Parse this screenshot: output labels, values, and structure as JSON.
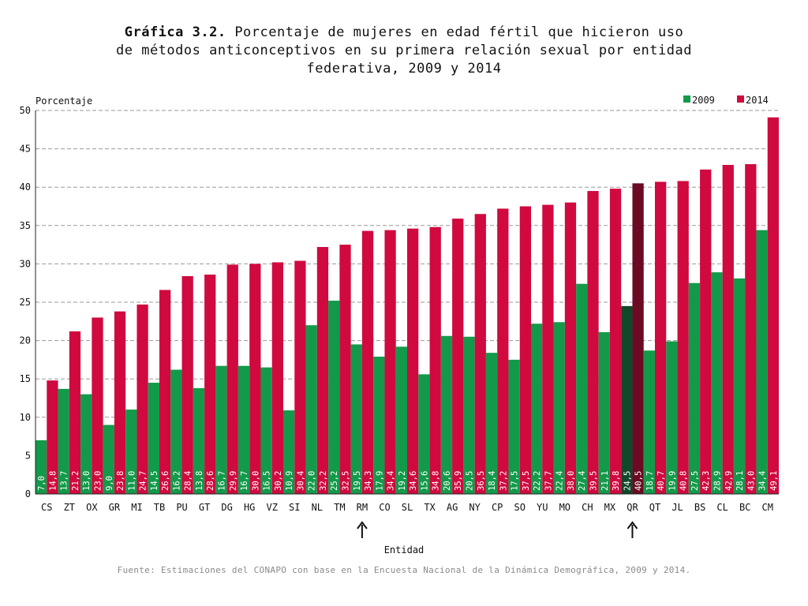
{
  "title": {
    "bold": "Gráfica 3.2.",
    "line1": "Porcentaje de mujeres en edad fértil que hicieron uso",
    "line2": "de métodos anticonceptivos en su primera relación sexual por entidad",
    "line3": "federativa, 2009 y 2014"
  },
  "source": "Fuente: Estimaciones del CONAPO con base en la Encuesta Nacional de la Dinámica Demográfica, 2009 y 2014.",
  "colors": {
    "s2009": "#129a4a",
    "s2014": "#d0093f",
    "s2009_highlight": "#10482a",
    "s2014_highlight": "#6b0a22",
    "grid": "#9a9a9a"
  },
  "chart_data": {
    "type": "bar",
    "ylabel": "Porcentaje",
    "xlabel": "Entidad",
    "ylim": [
      0,
      50
    ],
    "yticks": [
      0,
      5,
      10,
      15,
      20,
      25,
      30,
      35,
      40,
      45,
      50
    ],
    "grid": true,
    "legend_position": "top-right",
    "categories": [
      "CS",
      "ZT",
      "OX",
      "GR",
      "MI",
      "TB",
      "PU",
      "GT",
      "DG",
      "HG",
      "VZ",
      "SI",
      "NL",
      "TM",
      "RM",
      "CO",
      "SL",
      "TX",
      "AG",
      "NY",
      "CP",
      "SO",
      "YU",
      "MO",
      "CH",
      "MX",
      "QR",
      "QT",
      "JL",
      "BS",
      "CL",
      "BC",
      "CM"
    ],
    "series": [
      {
        "name": "2009",
        "values": [
          7.0,
          13.7,
          13.0,
          9.0,
          11.0,
          14.5,
          16.2,
          13.8,
          16.7,
          16.7,
          16.5,
          10.9,
          22.0,
          25.2,
          19.5,
          17.9,
          19.2,
          15.6,
          20.6,
          20.5,
          18.4,
          17.5,
          22.2,
          22.4,
          27.4,
          21.1,
          24.5,
          18.7,
          19.9,
          27.5,
          28.9,
          28.1,
          34.4
        ],
        "labels": [
          "7,0",
          "13,7",
          "13,0",
          "9,0",
          "11,0",
          "14,5",
          "16,2",
          "13,8",
          "16,7",
          "16,7",
          "16,5",
          "10,9",
          "22,0",
          "25,2",
          "19,5",
          "17,9",
          "19,2",
          "15,6",
          "20,6",
          "20,5",
          "18,4",
          "17,5",
          "22,2",
          "22,4",
          "27,4",
          "21,1",
          "24,5",
          "18,7",
          "19,9",
          "27,5",
          "28,9",
          "28,1",
          "34,4"
        ]
      },
      {
        "name": "2014",
        "values": [
          14.8,
          21.2,
          23.0,
          23.8,
          24.7,
          26.6,
          28.4,
          28.6,
          29.9,
          30.0,
          30.2,
          30.4,
          32.2,
          32.5,
          34.3,
          34.4,
          34.6,
          34.8,
          35.9,
          36.5,
          37.2,
          37.5,
          37.7,
          38.0,
          39.5,
          39.8,
          40.5,
          40.7,
          40.8,
          42.3,
          42.9,
          43.0,
          49.1
        ],
        "labels": [
          "14,8",
          "21,2",
          "23,0",
          "23,8",
          "24,7",
          "26,6",
          "28,4",
          "28,6",
          "29,9",
          "30,0",
          "30,2",
          "30,4",
          "32,2",
          "32,5",
          "34,3",
          "34,4",
          "34,6",
          "34,8",
          "35,9",
          "36,5",
          "37,2",
          "37,5",
          "37,7",
          "38,0",
          "39,5",
          "39,8",
          "40,5",
          "40,7",
          "40,8",
          "42,3",
          "42,9",
          "43,0",
          "49,1"
        ]
      }
    ],
    "highlighted": [
      "QR"
    ],
    "arrows_under": [
      "RM",
      "QR"
    ]
  }
}
